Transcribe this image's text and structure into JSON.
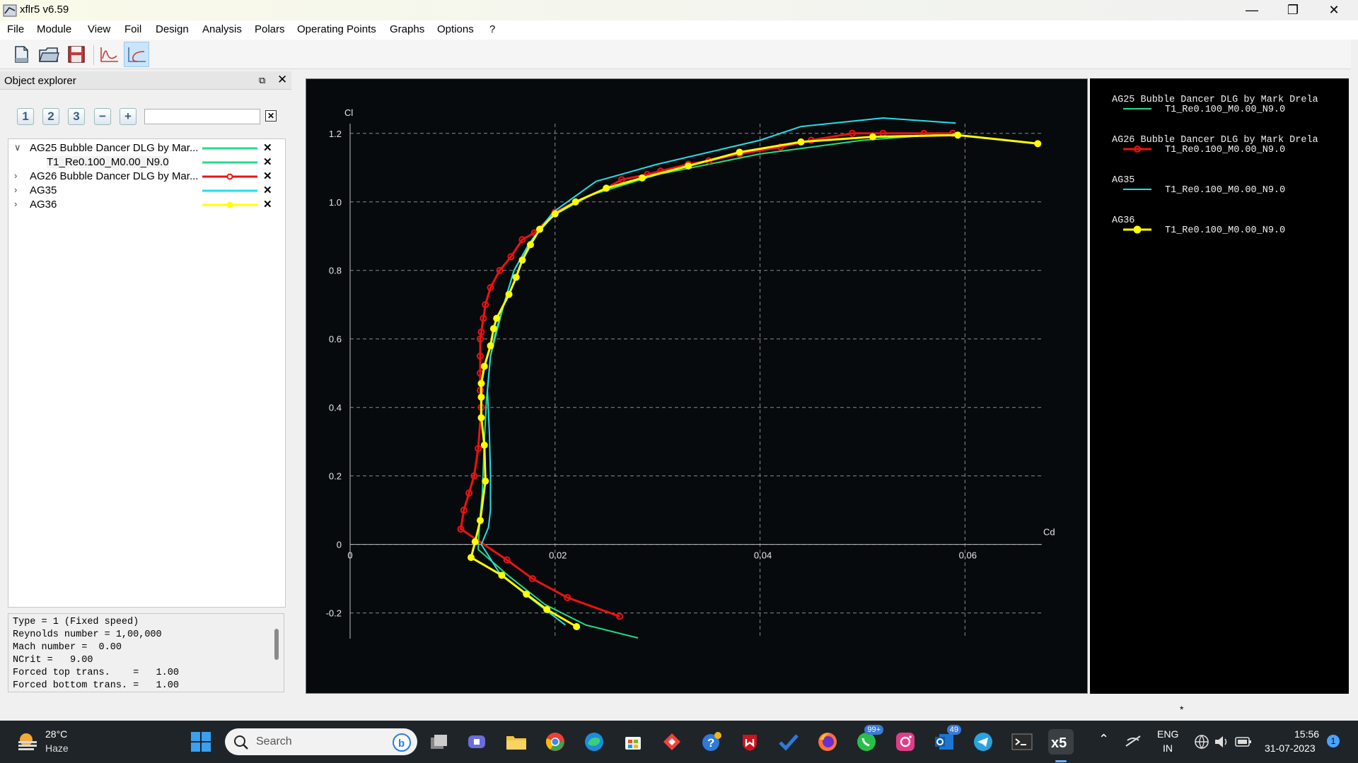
{
  "window": {
    "title": "xflr5 v6.59",
    "controls": [
      "minimize-icon",
      "restore-icon",
      "close-icon"
    ]
  },
  "menu": [
    "File",
    "Module",
    "View",
    "Foil",
    "Design",
    "Analysis",
    "Polars",
    "Operating Points",
    "Graphs",
    "Options",
    "?"
  ],
  "toolbar": {
    "buttons": [
      {
        "name": "new-project-icon"
      },
      {
        "name": "open-folder-icon"
      },
      {
        "name": "save-icon"
      },
      {
        "name": "opp-view-icon"
      },
      {
        "name": "polar-view-icon",
        "active": true
      }
    ]
  },
  "explorer": {
    "title": "Object explorer",
    "tabs": [
      "1",
      "2",
      "3",
      "−",
      "+"
    ],
    "filter_value": "",
    "tree": [
      {
        "label": "AG25 Bubble Dancer DLG by Mar...",
        "expanded": true,
        "color": "#22dd88",
        "marker": false
      },
      {
        "label": "T1_Re0.100_M0.00_N9.0",
        "child": true,
        "color": "#22dd88",
        "marker": false
      },
      {
        "label": "AG26 Bubble Dancer DLG by Mar...",
        "expanded": false,
        "color": "#ee1111",
        "marker": "hollow"
      },
      {
        "label": "AG35",
        "expanded": false,
        "color": "#22e0e8",
        "marker": false
      },
      {
        "label": "AG36",
        "expanded": false,
        "color": "#ffff00",
        "marker": "filled"
      }
    ],
    "properties": [
      "Type = 1 (Fixed speed)",
      "Reynolds number = 1,00,000",
      "Mach number =  0.00",
      "NCrit =   9.00",
      "Forced top trans.    =   1.00",
      "Forced bottom trans. =   1.00"
    ]
  },
  "chart_data": {
    "type": "line",
    "xlabel": "Cd",
    "ylabel": "Cl",
    "xlim": [
      0,
      0.0675
    ],
    "ylim": [
      -0.275,
      1.28
    ],
    "xticks": [
      0,
      0.02,
      0.04,
      0.06
    ],
    "yticks": [
      -0.2,
      0,
      0.2,
      0.4,
      0.6,
      0.8,
      1.0,
      1.2
    ],
    "xtick_labels": [
      "0",
      "0.02",
      "0.04",
      "0.06"
    ],
    "ytick_labels": [
      "-0.2",
      "0",
      "0.2",
      "0.4",
      "0.6",
      "0.8",
      "1.0",
      "1.2"
    ],
    "grid": true,
    "legend_position": "right",
    "series": [
      {
        "foil": "AG25 Bubble Dancer DLG by Mark Drela",
        "name": "T1_Re0.100_M0.00_N9.0",
        "color": "#22dd88",
        "marker": "none",
        "points": [
          [
            0.0281,
            -0.273
          ],
          [
            0.023,
            -0.235
          ],
          [
            0.019,
            -0.175
          ],
          [
            0.0156,
            -0.095
          ],
          [
            0.0125,
            -0.015
          ],
          [
            0.0126,
            0.05
          ],
          [
            0.0129,
            0.15
          ],
          [
            0.0131,
            0.3
          ],
          [
            0.0133,
            0.42
          ],
          [
            0.0137,
            0.55
          ],
          [
            0.0143,
            0.62
          ],
          [
            0.015,
            0.7
          ],
          [
            0.016,
            0.8
          ],
          [
            0.0175,
            0.88
          ],
          [
            0.0198,
            0.96
          ],
          [
            0.0235,
            1.02
          ],
          [
            0.03,
            1.08
          ],
          [
            0.04,
            1.14
          ],
          [
            0.05,
            1.18
          ],
          [
            0.059,
            1.2
          ]
        ]
      },
      {
        "foil": "AG26 Bubble Dancer DLG by Mark Drela",
        "name": "T1_Re0.100_M0.00_N9.0",
        "color": "#ee1111",
        "marker": "hollow",
        "points": [
          [
            0.0263,
            -0.21
          ],
          [
            0.0212,
            -0.155
          ],
          [
            0.0178,
            -0.1
          ],
          [
            0.0153,
            -0.045
          ],
          [
            0.0108,
            0.045
          ],
          [
            0.0111,
            0.1
          ],
          [
            0.0116,
            0.15
          ],
          [
            0.0121,
            0.2
          ],
          [
            0.0125,
            0.28
          ],
          [
            0.0128,
            0.4
          ],
          [
            0.0127,
            0.45
          ],
          [
            0.0127,
            0.5
          ],
          [
            0.0127,
            0.55
          ],
          [
            0.0127,
            0.6
          ],
          [
            0.0128,
            0.62
          ],
          [
            0.013,
            0.66
          ],
          [
            0.0132,
            0.7
          ],
          [
            0.0137,
            0.75
          ],
          [
            0.0146,
            0.8
          ],
          [
            0.0157,
            0.84
          ],
          [
            0.0168,
            0.89
          ],
          [
            0.018,
            0.91
          ],
          [
            0.02,
            0.97
          ],
          [
            0.022,
            1.0
          ],
          [
            0.025,
            1.04
          ],
          [
            0.0265,
            1.065
          ],
          [
            0.029,
            1.08
          ],
          [
            0.0303,
            1.09
          ],
          [
            0.033,
            1.11
          ],
          [
            0.035,
            1.12
          ],
          [
            0.038,
            1.14
          ],
          [
            0.042,
            1.16
          ],
          [
            0.045,
            1.18
          ],
          [
            0.049,
            1.2
          ],
          [
            0.052,
            1.2
          ],
          [
            0.056,
            1.2
          ],
          [
            0.0588,
            1.2
          ]
        ]
      },
      {
        "foil": "AG35",
        "name": "T1_Re0.100_M0.00_N9.0",
        "color": "#22e0e8",
        "marker": "none",
        "points": [
          [
            0.021,
            -0.235
          ],
          [
            0.0175,
            -0.155
          ],
          [
            0.0145,
            -0.08
          ],
          [
            0.0128,
            0.0
          ],
          [
            0.0135,
            0.05
          ],
          [
            0.0137,
            0.1
          ],
          [
            0.0137,
            0.2
          ],
          [
            0.0136,
            0.32
          ],
          [
            0.0134,
            0.45
          ],
          [
            0.0137,
            0.55
          ],
          [
            0.0142,
            0.62
          ],
          [
            0.015,
            0.7
          ],
          [
            0.016,
            0.8
          ],
          [
            0.0175,
            0.88
          ],
          [
            0.0198,
            0.97
          ],
          [
            0.024,
            1.06
          ],
          [
            0.03,
            1.11
          ],
          [
            0.04,
            1.18
          ],
          [
            0.044,
            1.22
          ],
          [
            0.052,
            1.245
          ],
          [
            0.0591,
            1.23
          ]
        ]
      },
      {
        "foil": "AG36",
        "name": "T1_Re0.100_M0.00_N9.0",
        "color": "#ffff00",
        "marker": "filled",
        "points": [
          [
            0.0221,
            -0.24
          ],
          [
            0.0192,
            -0.19
          ],
          [
            0.0172,
            -0.145
          ],
          [
            0.0148,
            -0.09
          ],
          [
            0.0118,
            -0.038
          ],
          [
            0.0122,
            0.008
          ],
          [
            0.0127,
            0.07
          ],
          [
            0.0132,
            0.185
          ],
          [
            0.0131,
            0.29
          ],
          [
            0.0128,
            0.37
          ],
          [
            0.0128,
            0.43
          ],
          [
            0.0128,
            0.47
          ],
          [
            0.0131,
            0.52
          ],
          [
            0.0137,
            0.58
          ],
          [
            0.014,
            0.63
          ],
          [
            0.0143,
            0.66
          ],
          [
            0.0155,
            0.73
          ],
          [
            0.0162,
            0.78
          ],
          [
            0.0168,
            0.83
          ],
          [
            0.0176,
            0.875
          ],
          [
            0.0185,
            0.92
          ],
          [
            0.02,
            0.965
          ],
          [
            0.022,
            1.0
          ],
          [
            0.025,
            1.04
          ],
          [
            0.0285,
            1.07
          ],
          [
            0.033,
            1.105
          ],
          [
            0.038,
            1.145
          ],
          [
            0.044,
            1.175
          ],
          [
            0.051,
            1.19
          ],
          [
            0.0593,
            1.195
          ],
          [
            0.0671,
            1.17
          ]
        ]
      }
    ]
  },
  "legend": [
    {
      "foil": "AG25 Bubble Dancer DLG by Mark Drela",
      "polar": "T1_Re0.100_M0.00_N9.0",
      "color": "#22dd88",
      "marker": "none"
    },
    {
      "foil": "AG26 Bubble Dancer DLG by Mark Drela",
      "polar": "T1_Re0.100_M0.00_N9.0",
      "color": "#ee1111",
      "marker": "hollow"
    },
    {
      "foil": "AG35",
      "polar": "T1_Re0.100_M0.00_N9.0",
      "color": "#22e0e8",
      "marker": "none"
    },
    {
      "foil": "AG36",
      "polar": "T1_Re0.100_M0.00_N9.0",
      "color": "#ffff00",
      "marker": "filled"
    }
  ],
  "taskbar": {
    "weather_temp": "28°C",
    "weather_desc": "Haze",
    "search_placeholder": "Search",
    "apps": [
      "task-view-icon",
      "teams-icon",
      "file-explorer-icon",
      "chrome-icon",
      "edge-icon",
      "store-icon",
      "anydesk-icon",
      "help-icon",
      "mcafee-icon",
      "todo-icon",
      "firefox-icon",
      "whatsapp-icon",
      "instagram-icon",
      "outlook-icon",
      "telegram-icon",
      "terminal-icon",
      "xflr5-icon"
    ],
    "whatsapp_badge": "99+",
    "outlook_badge": "49",
    "lang_1": "ENG",
    "lang_2": "IN",
    "time": "15:56",
    "date": "31-07-2023",
    "notif_count": "1"
  }
}
